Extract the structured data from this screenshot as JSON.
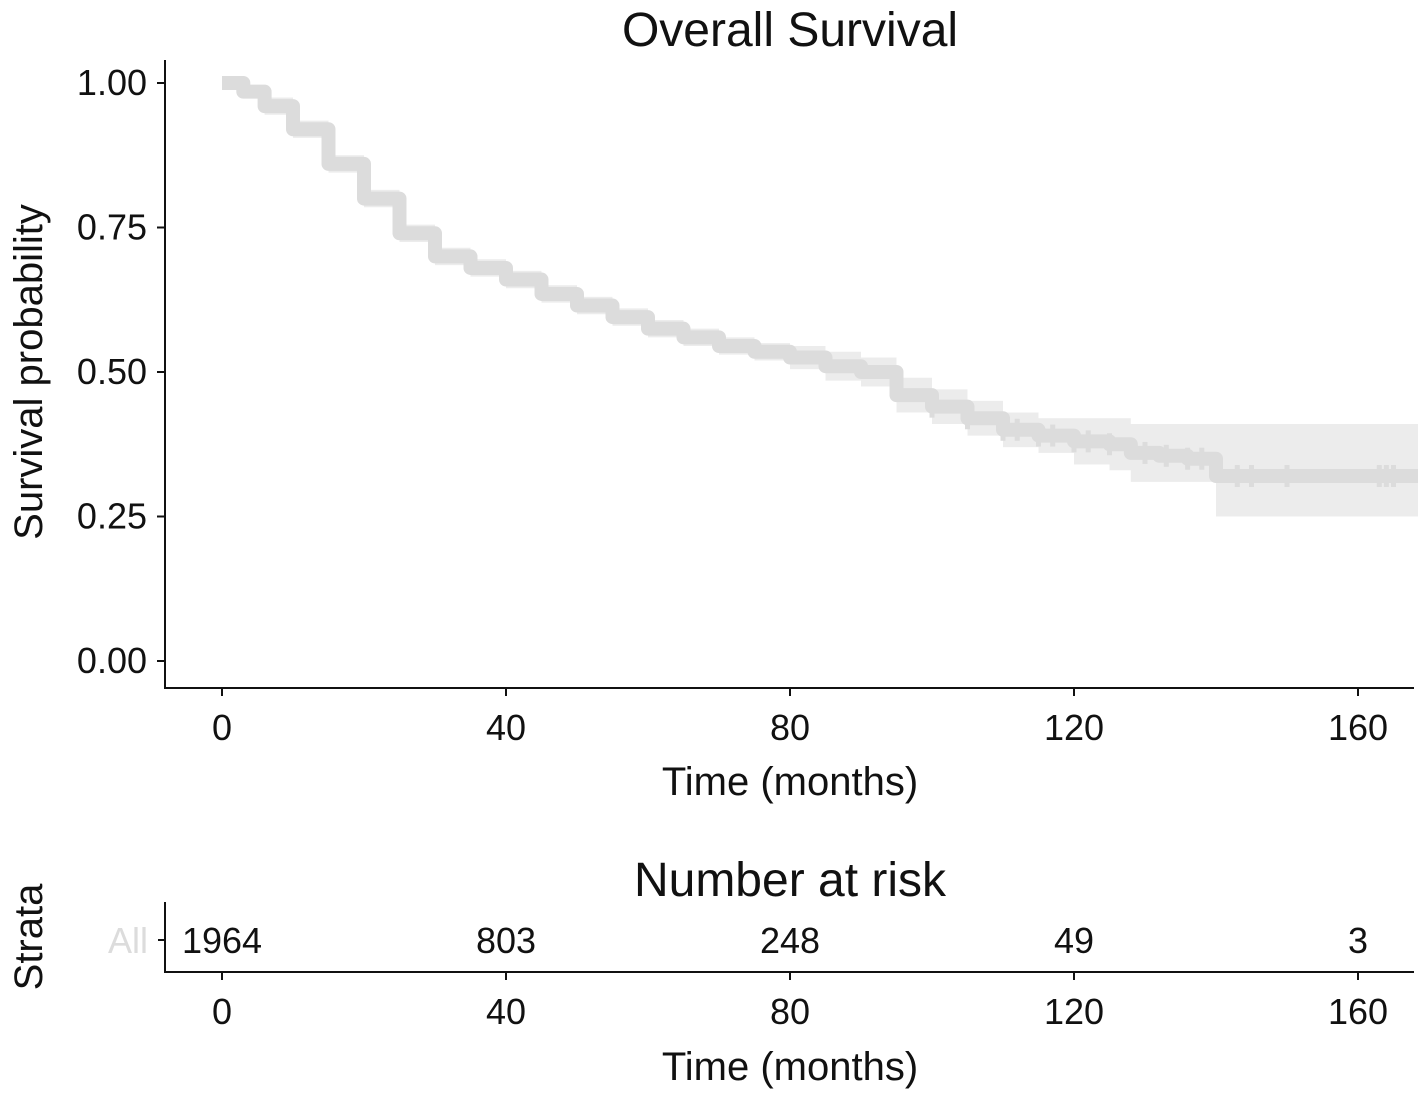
{
  "chart_data": [
    {
      "type": "line",
      "title": "Overall Survival",
      "xlabel": "Time (months)",
      "ylabel": "Survival probability",
      "xlim": [
        -8,
        168
      ],
      "ylim": [
        -0.05,
        1.05
      ],
      "x_ticks": [
        0,
        40,
        80,
        120,
        160
      ],
      "x_tick_labels": [
        "0",
        "40",
        "80",
        "120",
        "160"
      ],
      "y_ticks": [
        0,
        0.25,
        0.5,
        0.75,
        1.0
      ],
      "y_tick_labels": [
        "0.00",
        "0.25",
        "0.50",
        "0.75",
        "1.00"
      ],
      "grid": false,
      "legend": "none",
      "color": "#dcdcdc",
      "ci_color": "#ececec",
      "series": [
        {
          "x": [
            0,
            3,
            6,
            10,
            15,
            20,
            25,
            30,
            35,
            40,
            45,
            50,
            55,
            60,
            65,
            70,
            75,
            80,
            85,
            90,
            95,
            100,
            105,
            110,
            115,
            120,
            125,
            128,
            132,
            136,
            140,
            145,
            150,
            155,
            160,
            165
          ],
          "y": [
            1.0,
            0.985,
            0.96,
            0.92,
            0.86,
            0.8,
            0.74,
            0.7,
            0.68,
            0.66,
            0.635,
            0.615,
            0.595,
            0.575,
            0.56,
            0.545,
            0.535,
            0.525,
            0.51,
            0.5,
            0.46,
            0.44,
            0.42,
            0.4,
            0.39,
            0.38,
            0.375,
            0.36,
            0.355,
            0.35,
            0.32,
            0.32,
            0.32,
            0.32,
            0.32,
            0.32
          ],
          "ci_upper": [
            1.0,
            0.995,
            0.975,
            0.935,
            0.875,
            0.815,
            0.755,
            0.715,
            0.695,
            0.675,
            0.65,
            0.63,
            0.61,
            0.59,
            0.575,
            0.56,
            0.55,
            0.545,
            0.535,
            0.525,
            0.49,
            0.47,
            0.45,
            0.43,
            0.42,
            0.42,
            0.42,
            0.41,
            0.41,
            0.41,
            0.41,
            0.41,
            0.41,
            0.41,
            0.41,
            0.41
          ],
          "ci_lower": [
            1.0,
            0.975,
            0.945,
            0.905,
            0.845,
            0.785,
            0.725,
            0.685,
            0.665,
            0.645,
            0.62,
            0.6,
            0.58,
            0.56,
            0.545,
            0.53,
            0.52,
            0.505,
            0.485,
            0.475,
            0.43,
            0.41,
            0.39,
            0.37,
            0.36,
            0.34,
            0.33,
            0.31,
            0.31,
            0.31,
            0.25,
            0.25,
            0.25,
            0.25,
            0.25,
            0.25
          ],
          "censor_x": [
            100,
            105,
            110,
            112,
            115,
            117,
            120,
            122,
            125,
            130,
            133,
            136,
            138,
            143,
            145,
            150,
            163,
            164,
            165
          ]
        }
      ]
    },
    {
      "type": "table",
      "title": "Number at risk",
      "xlabel": "Time (months)",
      "ylabel": "Strata",
      "row_label": "All",
      "row_label_color": "#dcdcdc",
      "x": [
        0,
        40,
        80,
        120,
        160
      ],
      "values": [
        "1964",
        "803",
        "248",
        "49",
        "3"
      ],
      "x_tick_labels": [
        "0",
        "40",
        "80",
        "120",
        "160"
      ]
    }
  ]
}
